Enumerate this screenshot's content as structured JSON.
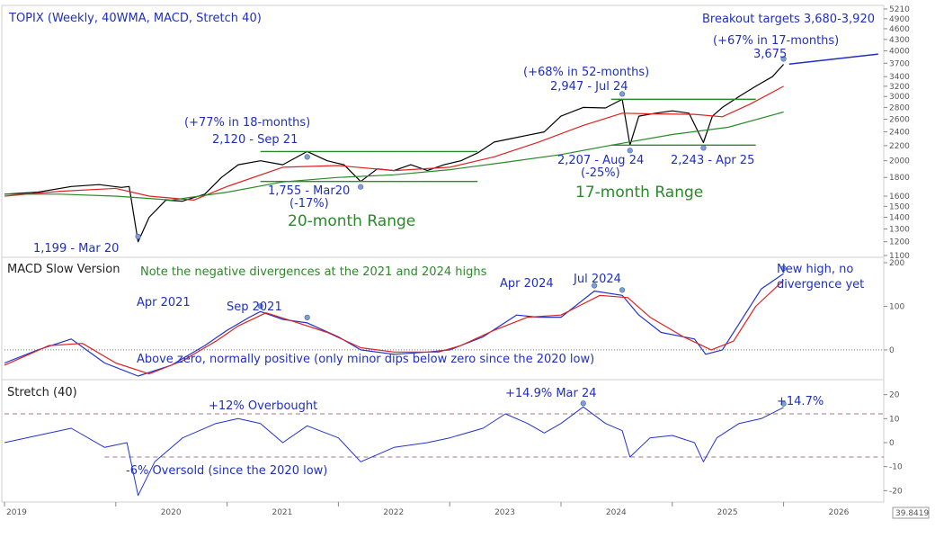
{
  "chart_data": [
    {
      "type": "line",
      "title": "TOPIX (Weekly, 40WMA, MACD, Stretch 40)",
      "y_scale": "log",
      "ylim": [
        1100,
        5210
      ],
      "yticks": [
        1100,
        1200,
        1300,
        1400,
        1500,
        1600,
        1800,
        2000,
        2200,
        2400,
        2600,
        2800,
        3000,
        3200,
        3400,
        3700,
        4000,
        4300,
        4600,
        4900,
        5210
      ],
      "series": [
        {
          "name": "TOPIX",
          "color": "#000000",
          "points": [
            [
              2019.0,
              1620
            ],
            [
              2019.3,
              1640
            ],
            [
              2019.6,
              1700
            ],
            [
              2019.85,
              1720
            ],
            [
              2020.05,
              1690
            ],
            [
              2020.12,
              1700
            ],
            [
              2020.2,
              1199
            ],
            [
              2020.3,
              1400
            ],
            [
              2020.45,
              1560
            ],
            [
              2020.6,
              1550
            ],
            [
              2020.8,
              1620
            ],
            [
              2020.95,
              1800
            ],
            [
              2021.1,
              1950
            ],
            [
              2021.3,
              2000
            ],
            [
              2021.5,
              1950
            ],
            [
              2021.72,
              2120
            ],
            [
              2021.9,
              2000
            ],
            [
              2022.05,
              1950
            ],
            [
              2022.2,
              1755
            ],
            [
              2022.35,
              1900
            ],
            [
              2022.5,
              1880
            ],
            [
              2022.65,
              1950
            ],
            [
              2022.8,
              1880
            ],
            [
              2022.95,
              1950
            ],
            [
              2023.1,
              2000
            ],
            [
              2023.25,
              2100
            ],
            [
              2023.4,
              2250
            ],
            [
              2023.55,
              2300
            ],
            [
              2023.7,
              2350
            ],
            [
              2023.85,
              2400
            ],
            [
              2024.0,
              2650
            ],
            [
              2024.2,
              2800
            ],
            [
              2024.4,
              2790
            ],
            [
              2024.55,
              2947
            ],
            [
              2024.62,
              2207
            ],
            [
              2024.7,
              2650
            ],
            [
              2024.85,
              2700
            ],
            [
              2025.0,
              2740
            ],
            [
              2025.15,
              2700
            ],
            [
              2025.28,
              2243
            ],
            [
              2025.36,
              2650
            ],
            [
              2025.45,
              2800
            ],
            [
              2025.6,
              3000
            ],
            [
              2025.75,
              3200
            ],
            [
              2025.9,
              3400
            ],
            [
              2026.0,
              3675
            ]
          ]
        },
        {
          "name": "40WMA",
          "color": "#dd2222",
          "points": [
            [
              2019.0,
              1600
            ],
            [
              2019.5,
              1650
            ],
            [
              2020.0,
              1680
            ],
            [
              2020.3,
              1600
            ],
            [
              2020.7,
              1560
            ],
            [
              2021.0,
              1700
            ],
            [
              2021.5,
              1920
            ],
            [
              2022.0,
              1940
            ],
            [
              2022.5,
              1880
            ],
            [
              2023.0,
              1920
            ],
            [
              2023.4,
              2050
            ],
            [
              2023.8,
              2250
            ],
            [
              2024.2,
              2500
            ],
            [
              2024.55,
              2700
            ],
            [
              2024.8,
              2690
            ],
            [
              2025.2,
              2680
            ],
            [
              2025.45,
              2640
            ],
            [
              2025.7,
              2860
            ],
            [
              2026.0,
              3200
            ]
          ]
        },
        {
          "name": "Long-term MA",
          "color": "#2a8a2a",
          "points": [
            [
              2019.0,
              1620
            ],
            [
              2019.5,
              1620
            ],
            [
              2020.0,
              1600
            ],
            [
              2020.5,
              1560
            ],
            [
              2021.0,
              1640
            ],
            [
              2021.5,
              1750
            ],
            [
              2022.0,
              1800
            ],
            [
              2022.5,
              1830
            ],
            [
              2023.0,
              1890
            ],
            [
              2023.5,
              1980
            ],
            [
              2024.0,
              2080
            ],
            [
              2024.5,
              2220
            ],
            [
              2025.0,
              2360
            ],
            [
              2025.5,
              2470
            ],
            [
              2026.0,
              2720
            ]
          ]
        }
      ],
      "annotations": {
        "breakout_target": "Breakout targets 3,680-3,920",
        "gain_17m": "(+67% in 17-months)",
        "high_2025": "3,675",
        "gain_52m": "(+68% in 52-months)",
        "high_2024": "2,947 - Jul 24",
        "gain_18m": "(+77% in 18-months)",
        "high_2021": "2,120 - Sep 21",
        "low_2022": "1,755 - Mar20",
        "low_2022_pct": "(-17%)",
        "low_2020": "1,199 - Mar 20",
        "low_aug24": "2,207 - Aug 24",
        "low_aug24_pct": "(-25%)",
        "low_apr25": "2,243 - Apr 25",
        "range_20m": "20-month Range",
        "range_17m": "17-month Range"
      },
      "ranges": [
        {
          "x": [
            2021.3,
            2023.25
          ],
          "y": [
            1755,
            2120
          ]
        },
        {
          "x": [
            2024.45,
            2025.75
          ],
          "y": [
            2207,
            2947
          ]
        }
      ],
      "target_line": {
        "x": [
          2026.05,
          2026.85
        ],
        "y": [
          3680,
          3920
        ]
      }
    },
    {
      "type": "line",
      "title": "MACD Slow Version",
      "ylim": [
        -60,
        200
      ],
      "yticks": [
        0,
        100,
        200
      ],
      "series": [
        {
          "name": "MACD",
          "color": "#2233cc",
          "points": [
            [
              2019.0,
              -30
            ],
            [
              2019.3,
              0
            ],
            [
              2019.6,
              25
            ],
            [
              2019.9,
              -30
            ],
            [
              2020.2,
              -60
            ],
            [
              2020.5,
              -35
            ],
            [
              2020.8,
              10
            ],
            [
              2021.0,
              45
            ],
            [
              2021.2,
              75
            ],
            [
              2021.3,
              88
            ],
            [
              2021.5,
              70
            ],
            [
              2021.72,
              62
            ],
            [
              2022.0,
              30
            ],
            [
              2022.2,
              0
            ],
            [
              2022.5,
              -10
            ],
            [
              2022.8,
              -5
            ],
            [
              2023.0,
              0
            ],
            [
              2023.3,
              30
            ],
            [
              2023.6,
              80
            ],
            [
              2023.8,
              75
            ],
            [
              2024.0,
              75
            ],
            [
              2024.3,
              135
            ],
            [
              2024.55,
              125
            ],
            [
              2024.7,
              80
            ],
            [
              2024.9,
              40
            ],
            [
              2025.2,
              25
            ],
            [
              2025.3,
              -10
            ],
            [
              2025.45,
              0
            ],
            [
              2025.6,
              60
            ],
            [
              2025.8,
              140
            ],
            [
              2026.0,
              175
            ]
          ]
        },
        {
          "name": "Signal",
          "color": "#dd2222",
          "points": [
            [
              2019.0,
              -35
            ],
            [
              2019.4,
              10
            ],
            [
              2019.7,
              15
            ],
            [
              2020.0,
              -30
            ],
            [
              2020.3,
              -55
            ],
            [
              2020.6,
              -25
            ],
            [
              2020.9,
              20
            ],
            [
              2021.1,
              55
            ],
            [
              2021.35,
              85
            ],
            [
              2021.6,
              65
            ],
            [
              2021.9,
              40
            ],
            [
              2022.2,
              5
            ],
            [
              2022.5,
              -5
            ],
            [
              2022.9,
              -5
            ],
            [
              2023.1,
              10
            ],
            [
              2023.4,
              45
            ],
            [
              2023.7,
              75
            ],
            [
              2024.0,
              80
            ],
            [
              2024.35,
              125
            ],
            [
              2024.6,
              120
            ],
            [
              2024.8,
              75
            ],
            [
              2025.1,
              30
            ],
            [
              2025.35,
              0
            ],
            [
              2025.55,
              20
            ],
            [
              2025.75,
              100
            ],
            [
              2026.0,
              160
            ]
          ]
        }
      ],
      "annotations": {
        "note": "Note the negative divergences at the 2021 and 2024 highs",
        "apr2021": "Apr 2021",
        "sep2021": "Sep 2021",
        "apr2024": "Apr 2024",
        "jul2024": "Jul 2024",
        "new_high": "New high, no",
        "new_high_2": "divergence yet",
        "above_zero": "Above zero, normally positive (only minor dips below zero since the 2020 low)"
      }
    },
    {
      "type": "line",
      "title": "Stretch (40)",
      "ylim": [
        -24,
        24
      ],
      "yticks": [
        -20,
        -10,
        0,
        10,
        20
      ],
      "overbought": 12,
      "oversold": -6,
      "series": [
        {
          "name": "Stretch",
          "color": "#2233cc",
          "points": [
            [
              2019.0,
              0
            ],
            [
              2019.3,
              3
            ],
            [
              2019.6,
              6
            ],
            [
              2019.9,
              -2
            ],
            [
              2020.1,
              0
            ],
            [
              2020.2,
              -22
            ],
            [
              2020.35,
              -8
            ],
            [
              2020.6,
              2
            ],
            [
              2020.9,
              8
            ],
            [
              2021.1,
              10
            ],
            [
              2021.3,
              8
            ],
            [
              2021.5,
              0
            ],
            [
              2021.72,
              7
            ],
            [
              2022.0,
              2
            ],
            [
              2022.2,
              -8
            ],
            [
              2022.5,
              -2
            ],
            [
              2022.8,
              0
            ],
            [
              2023.0,
              2
            ],
            [
              2023.3,
              6
            ],
            [
              2023.5,
              12
            ],
            [
              2023.7,
              8
            ],
            [
              2023.85,
              4
            ],
            [
              2024.0,
              8
            ],
            [
              2024.2,
              14.9
            ],
            [
              2024.4,
              8
            ],
            [
              2024.55,
              5
            ],
            [
              2024.62,
              -6
            ],
            [
              2024.8,
              2
            ],
            [
              2025.0,
              3
            ],
            [
              2025.2,
              0
            ],
            [
              2025.28,
              -8
            ],
            [
              2025.4,
              2
            ],
            [
              2025.6,
              8
            ],
            [
              2025.8,
              10
            ],
            [
              2026.0,
              14.7
            ]
          ]
        }
      ],
      "annotations": {
        "overbought_label": "+12% Overbought",
        "oversold_label": "-6% Oversold (since the 2020 low)",
        "peak_label": "+14.9% Mar 24",
        "last_label": "+14.7%"
      }
    }
  ],
  "x_axis": {
    "labels": [
      "2019",
      "2020",
      "2021",
      "2022",
      "2023",
      "2024",
      "2025",
      "2026"
    ],
    "last_value": "39.8419"
  }
}
